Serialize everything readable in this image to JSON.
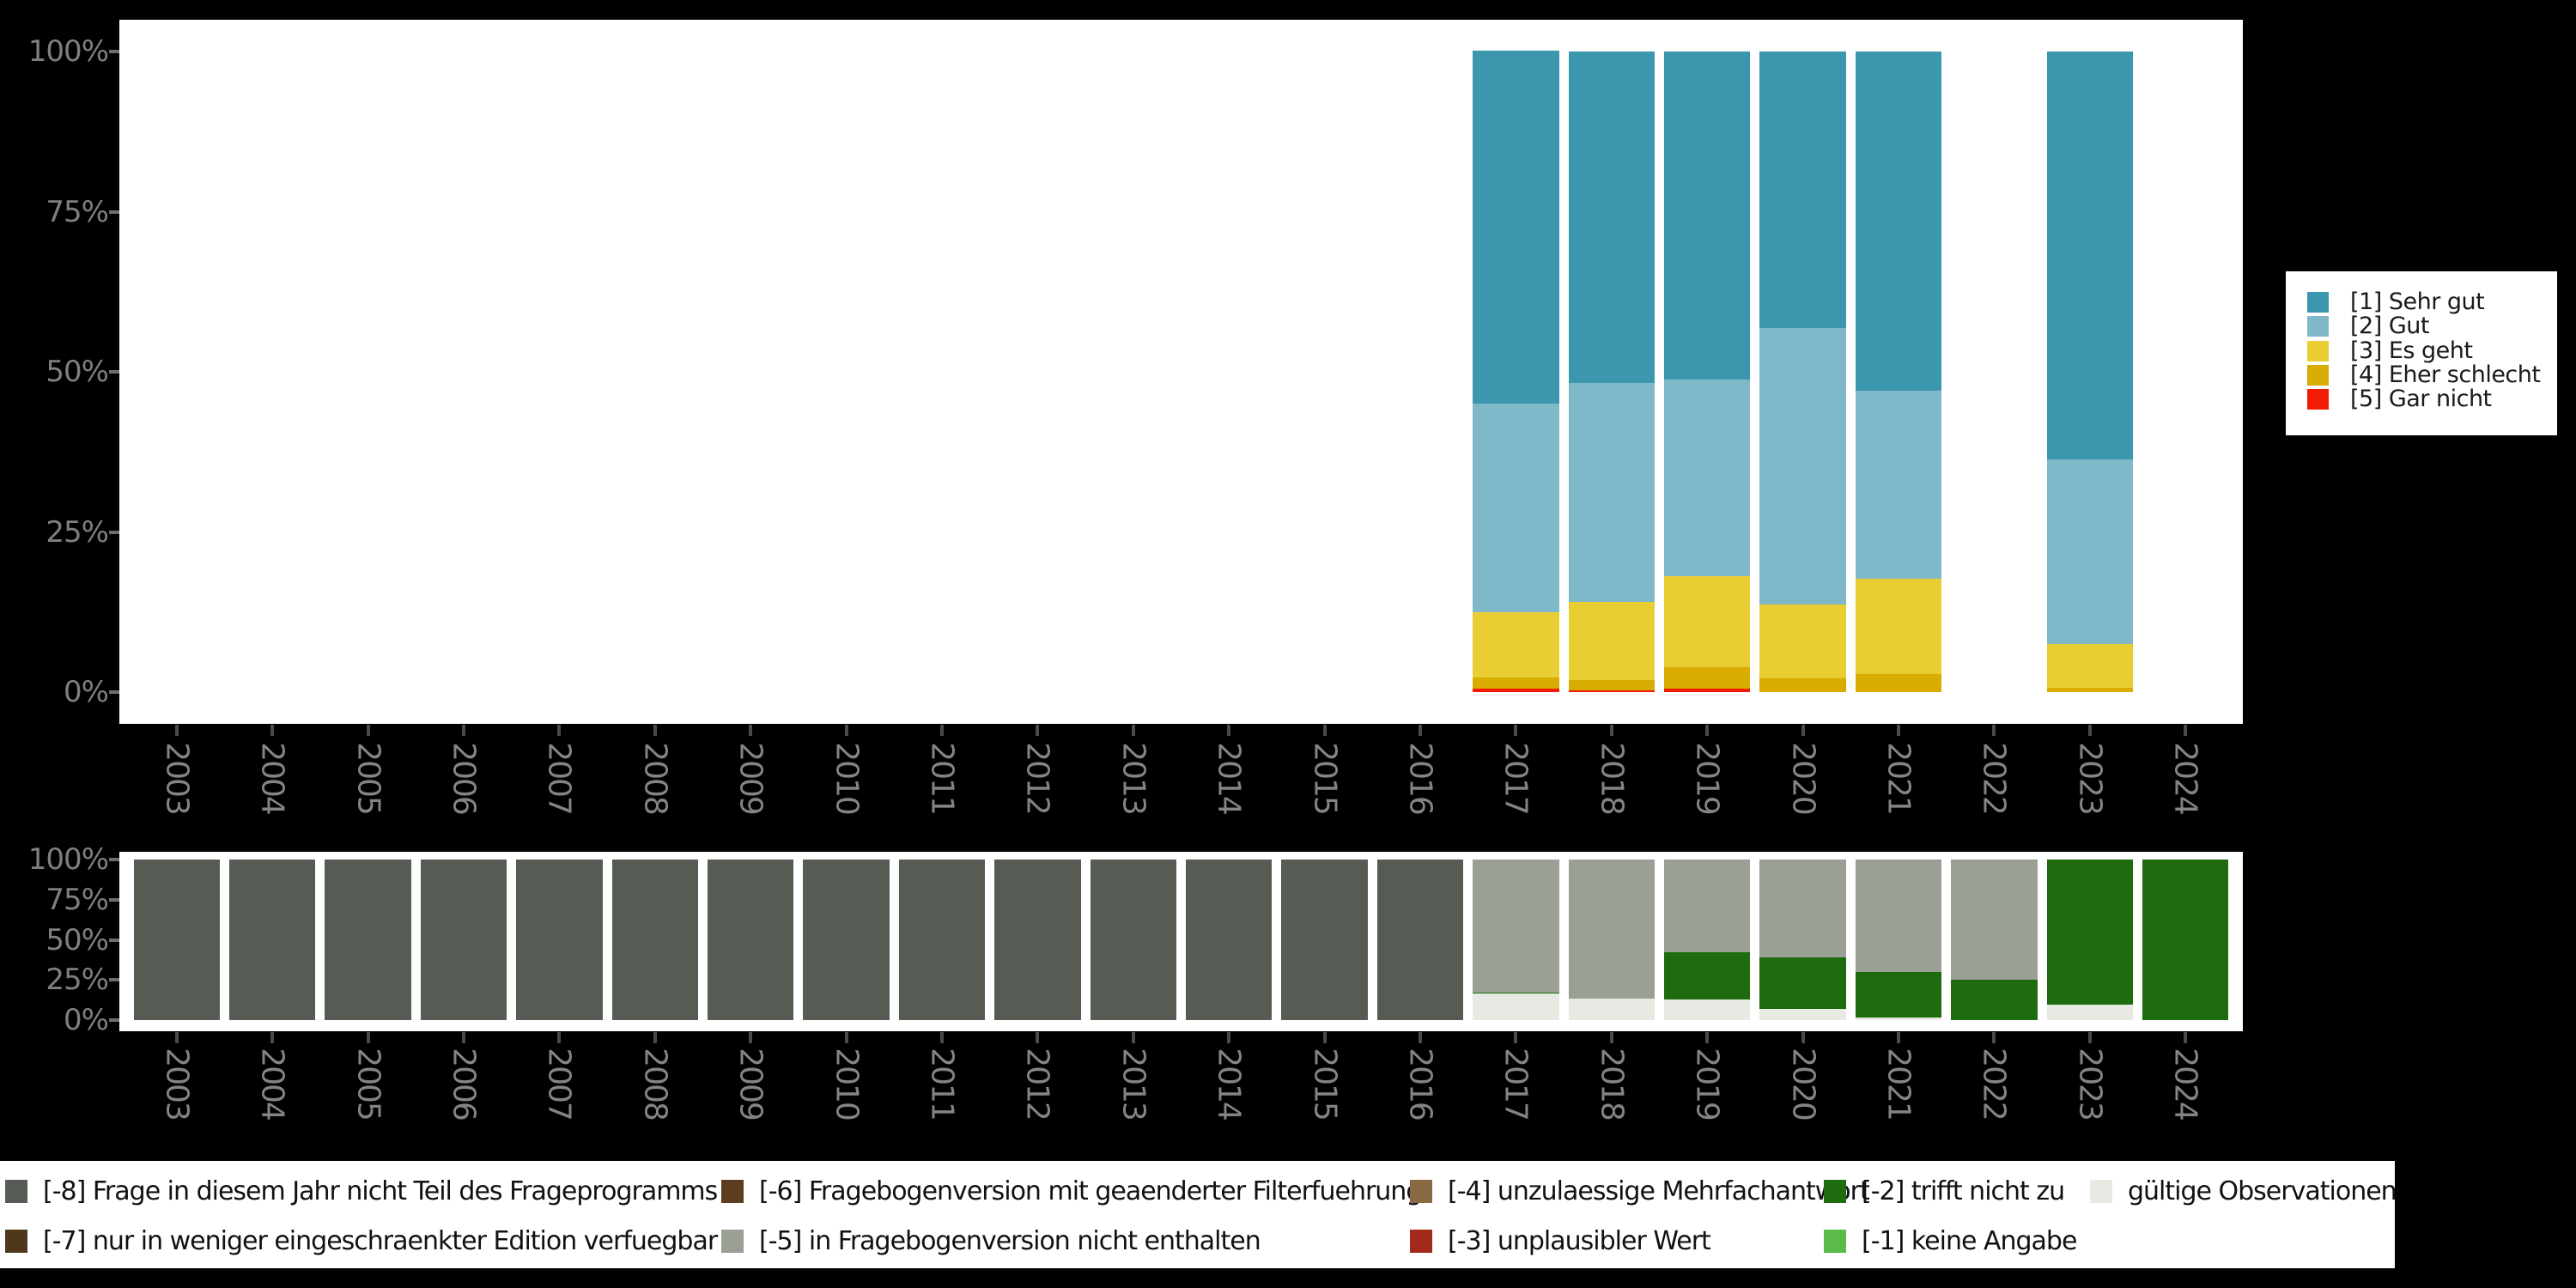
{
  "colors": {
    "background": "#000000",
    "panel_background": "#ffffff",
    "axis_text": "#7f7f7f",
    "year_text": "#848484",
    "x_tick": "#4a4a4a",
    "y_tick": "#6e6e6e",
    "legend_text": "#1a1a1a"
  },
  "x_axis_years": [
    "2003",
    "2004",
    "2005",
    "2006",
    "2007",
    "2008",
    "2009",
    "2010",
    "2011",
    "2012",
    "2013",
    "2014",
    "2015",
    "2016",
    "2017",
    "2018",
    "2019",
    "2020",
    "2021",
    "2022",
    "2023",
    "2024"
  ],
  "top_chart": {
    "y_axis_labels": [
      "100%",
      "75%",
      "50%",
      "25%",
      "0%"
    ],
    "legend_items": [
      {
        "label": "[1] Sehr gut",
        "color": "#3a97ad"
      },
      {
        "label": "[2] Gut",
        "color": "#7fb9c9"
      },
      {
        "label": "[3] Es geht",
        "color": "#e8ce33"
      },
      {
        "label": "[4] Eher schlecht",
        "color": "#d8ac00"
      },
      {
        "label": "[5] Gar nicht",
        "color": "#f21b07"
      }
    ]
  },
  "bottom_chart": {
    "y_axis_labels": [
      "100%",
      "75%",
      "50%",
      "25%",
      "0%"
    ]
  },
  "bottom_legend_rows": [
    [
      {
        "label": "[-8] Frage in diesem Jahr nicht Teil des Frageprogramms",
        "color": "#565c53"
      },
      {
        "label": "[-6] Fragebogenversion mit geaenderter Filterfuehrung",
        "color": "#5c3d20"
      },
      {
        "label": "[-4] unzulaessige Mehrfachantwort",
        "color": "#8a6a44"
      },
      {
        "label": "[-2] trifft nicht zu",
        "color": "#1e6b10"
      },
      {
        "label": "gültige Observationen",
        "color": "#e6eae3"
      }
    ],
    [
      {
        "label": "[-7] nur in weniger eingeschraenkter Edition verfuegbar",
        "color": "#4f371c"
      },
      {
        "label": "[-5] in Fragebogenversion nicht enthalten",
        "color": "#9aa096"
      },
      {
        "label": "[-3] unplausibler Wert",
        "color": "#a3291b"
      },
      {
        "label": "[-1] keine Angabe",
        "color": "#5bbb49"
      }
    ]
  ],
  "chart_data": [
    {
      "type": "bar",
      "stacked": true,
      "title": "",
      "xlabel": "",
      "ylabel": "",
      "ylim": [
        0,
        100
      ],
      "y_ticks": [
        "0%",
        "25%",
        "50%",
        "75%",
        "100%"
      ],
      "grid": false,
      "legend_position": "right",
      "categories": [
        "2003",
        "2004",
        "2005",
        "2006",
        "2007",
        "2008",
        "2009",
        "2010",
        "2011",
        "2012",
        "2013",
        "2014",
        "2015",
        "2016",
        "2017",
        "2018",
        "2019",
        "2020",
        "2021",
        "2022",
        "2023",
        "2024"
      ],
      "series": [
        {
          "name": "[1] Sehr gut",
          "color": "#3a97ad",
          "values": [
            null,
            null,
            null,
            null,
            null,
            null,
            null,
            null,
            null,
            null,
            null,
            null,
            null,
            null,
            55.1,
            51.8,
            51.2,
            43.2,
            52.9,
            null,
            63.7,
            null
          ]
        },
        {
          "name": "[2] Gut",
          "color": "#7fb9c9",
          "values": [
            null,
            null,
            null,
            null,
            null,
            null,
            null,
            null,
            null,
            null,
            null,
            null,
            null,
            null,
            32.5,
            34.1,
            30.7,
            43.1,
            29.4,
            null,
            28.8,
            null
          ]
        },
        {
          "name": "[3] Es geht",
          "color": "#e8ce33",
          "values": [
            null,
            null,
            null,
            null,
            null,
            null,
            null,
            null,
            null,
            null,
            null,
            null,
            null,
            null,
            10.2,
            12.2,
            14.2,
            11.6,
            14.9,
            null,
            6.8,
            null
          ]
        },
        {
          "name": "[4] Eher schlecht",
          "color": "#d8ac00",
          "values": [
            null,
            null,
            null,
            null,
            null,
            null,
            null,
            null,
            null,
            null,
            null,
            null,
            null,
            null,
            1.7,
            1.6,
            3.3,
            2.1,
            2.8,
            null,
            0.7,
            null
          ]
        },
        {
          "name": "[5] Gar nicht",
          "color": "#f21b07",
          "values": [
            null,
            null,
            null,
            null,
            null,
            null,
            null,
            null,
            null,
            null,
            null,
            null,
            null,
            null,
            0.6,
            0.3,
            0.6,
            0,
            0,
            null,
            0,
            null
          ]
        }
      ]
    },
    {
      "type": "bar",
      "stacked": true,
      "title": "",
      "xlabel": "",
      "ylabel": "",
      "ylim": [
        0,
        100
      ],
      "y_ticks": [
        "0%",
        "25%",
        "50%",
        "75%",
        "100%"
      ],
      "grid": false,
      "legend_position": "bottom",
      "categories": [
        "2003",
        "2004",
        "2005",
        "2006",
        "2007",
        "2008",
        "2009",
        "2010",
        "2011",
        "2012",
        "2013",
        "2014",
        "2015",
        "2016",
        "2017",
        "2018",
        "2019",
        "2020",
        "2021",
        "2022",
        "2023",
        "2024"
      ],
      "series": [
        {
          "name": "[-8] Frage in diesem Jahr nicht Teil des Frageprogramms",
          "color": "#565c53",
          "values": [
            100,
            100,
            100,
            100,
            100,
            100,
            100,
            100,
            100,
            100,
            100,
            100,
            100,
            100,
            0,
            0,
            0,
            0,
            0,
            0,
            0,
            0
          ]
        },
        {
          "name": "[-5] in Fragebogenversion nicht enthalten",
          "color": "#9aa096",
          "values": [
            0,
            0,
            0,
            0,
            0,
            0,
            0,
            0,
            0,
            0,
            0,
            0,
            0,
            0,
            82.7,
            86.7,
            57.9,
            60.7,
            69.9,
            74.9,
            0,
            0
          ]
        },
        {
          "name": "[-2] trifft nicht zu",
          "color": "#1e6b10",
          "values": [
            0,
            0,
            0,
            0,
            0,
            0,
            0,
            0,
            0,
            0,
            0,
            0,
            0,
            0,
            0.9,
            0,
            29.4,
            32.2,
            28.7,
            25.1,
            90.6,
            100
          ]
        },
        {
          "name": "gültige Observationen",
          "color": "#e6eae3",
          "values": [
            0,
            0,
            0,
            0,
            0,
            0,
            0,
            0,
            0,
            0,
            0,
            0,
            0,
            0,
            16.4,
            13.3,
            12.7,
            7.1,
            1.4,
            0,
            9.4,
            0
          ]
        }
      ]
    }
  ]
}
